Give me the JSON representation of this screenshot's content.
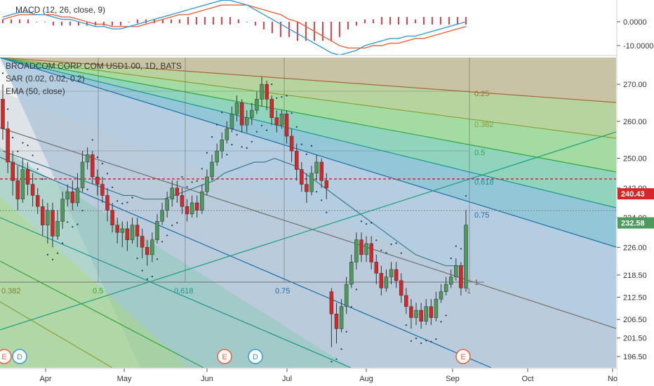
{
  "macd_pane": {
    "legend": "MACD (12, 26, close, 9)",
    "ticks": [
      "0.0000",
      "-10.0000"
    ],
    "macd_line_color": "#3a9bd5",
    "signal_line_color": "#e8643c",
    "histogram_color": "#e8101e",
    "macd_line": [
      2,
      3,
      4,
      4,
      3,
      3,
      2,
      1,
      1,
      0,
      -1,
      -2,
      -2,
      -3,
      -3,
      -2,
      -1,
      0,
      1,
      2,
      3,
      4,
      5,
      6,
      7,
      8,
      9,
      9,
      8,
      7,
      5,
      3,
      1,
      -1,
      -3,
      -5,
      -7,
      -9,
      -11,
      -13,
      -14,
      -13,
      -12,
      -10,
      -9,
      -8,
      -7,
      -7,
      -6,
      -6,
      -5,
      -4,
      -3,
      -2,
      -1,
      0
    ],
    "signal_line": [
      1,
      2,
      3,
      3,
      3,
      3,
      3,
      2,
      2,
      1,
      0,
      -1,
      -1,
      -2,
      -2,
      -2,
      -2,
      -1,
      0,
      1,
      2,
      3,
      3,
      4,
      5,
      6,
      7,
      7,
      7,
      7,
      6,
      5,
      4,
      3,
      1,
      0,
      -2,
      -4,
      -6,
      -8,
      -10,
      -11,
      -11,
      -11,
      -10,
      -10,
      -9,
      -9,
      -8,
      -7,
      -7,
      -6,
      -5,
      -4,
      -3,
      -2
    ]
  },
  "main_pane": {
    "legend": [
      "BROADCOM CORP COM USD1.00, 1D, BATS",
      "SAR (0.02, 0.02, 0.2)",
      "EMA (50, close)"
    ],
    "price_ticks": [
      "270.00",
      "260.00",
      "250.00",
      "242.00",
      "234.00",
      "226.00",
      "218.50",
      "212.50",
      "206.50",
      "201.50",
      "196.50"
    ],
    "price_tags": [
      {
        "label": "240.43",
        "value": 240.43,
        "color": "#d62728"
      },
      {
        "label": "232.58",
        "value": 232.58,
        "color": "#4c9a5c"
      }
    ],
    "months": [
      "Apr",
      "May",
      "Jun",
      "Jul",
      "Aug",
      "Sep",
      "Oct",
      "No"
    ],
    "fib_fan_labels": [
      "0.25",
      "0.382",
      "0.5",
      "0.618",
      "0.75",
      "1"
    ],
    "fib_time_labels": [
      "0.382",
      "0.5",
      "0.618",
      "0.75",
      "1"
    ],
    "event_markers": [
      {
        "label": "E",
        "type": "earnings",
        "color": "#e8643c"
      },
      {
        "label": "D",
        "type": "dividend",
        "color": "#3a9bd5"
      },
      {
        "label": "E",
        "type": "earnings",
        "color": "#e8643c"
      },
      {
        "label": "D",
        "type": "dividend",
        "color": "#3a9bd5"
      },
      {
        "label": "E",
        "type": "earnings",
        "color": "#e8643c"
      }
    ]
  },
  "chart_data": {
    "type": "candlestick",
    "title": "BROADCOM CORP COM USD1.00, 1D, BATS",
    "x_range": [
      "Mar",
      "Nov"
    ],
    "y_range": [
      195,
      276
    ],
    "up_color": "#4c9a5c",
    "down_color": "#d62728",
    "candles": [
      {
        "o": 266,
        "c": 258,
        "h": 270,
        "l": 255
      },
      {
        "o": 258,
        "c": 249,
        "h": 260,
        "l": 246
      },
      {
        "o": 249,
        "c": 244,
        "h": 252,
        "l": 240
      },
      {
        "o": 244,
        "c": 239,
        "h": 248,
        "l": 236
      },
      {
        "o": 239,
        "c": 247,
        "h": 250,
        "l": 238
      },
      {
        "o": 247,
        "c": 243,
        "h": 249,
        "l": 240
      },
      {
        "o": 243,
        "c": 240,
        "h": 246,
        "l": 237
      },
      {
        "o": 240,
        "c": 237,
        "h": 242,
        "l": 235
      },
      {
        "o": 237,
        "c": 232,
        "h": 239,
        "l": 229
      },
      {
        "o": 232,
        "c": 236,
        "h": 238,
        "l": 227
      },
      {
        "o": 236,
        "c": 229,
        "h": 238,
        "l": 226
      },
      {
        "o": 229,
        "c": 233,
        "h": 236,
        "l": 228
      },
      {
        "o": 233,
        "c": 239,
        "h": 241,
        "l": 231
      },
      {
        "o": 239,
        "c": 241,
        "h": 243,
        "l": 237
      },
      {
        "o": 241,
        "c": 238,
        "h": 244,
        "l": 236
      },
      {
        "o": 238,
        "c": 242,
        "h": 246,
        "l": 237
      },
      {
        "o": 242,
        "c": 249,
        "h": 252,
        "l": 241
      },
      {
        "o": 249,
        "c": 251,
        "h": 253,
        "l": 247
      },
      {
        "o": 251,
        "c": 245,
        "h": 252,
        "l": 243
      },
      {
        "o": 245,
        "c": 243,
        "h": 247,
        "l": 240
      },
      {
        "o": 243,
        "c": 240,
        "h": 245,
        "l": 238
      },
      {
        "o": 240,
        "c": 236,
        "h": 242,
        "l": 233
      },
      {
        "o": 236,
        "c": 232,
        "h": 238,
        "l": 230
      },
      {
        "o": 232,
        "c": 230,
        "h": 234,
        "l": 227
      },
      {
        "o": 230,
        "c": 231,
        "h": 233,
        "l": 226
      },
      {
        "o": 231,
        "c": 228,
        "h": 233,
        "l": 225
      },
      {
        "o": 228,
        "c": 232,
        "h": 234,
        "l": 227
      },
      {
        "o": 232,
        "c": 229,
        "h": 234,
        "l": 226
      },
      {
        "o": 229,
        "c": 226,
        "h": 231,
        "l": 223
      },
      {
        "o": 226,
        "c": 224,
        "h": 228,
        "l": 221
      },
      {
        "o": 224,
        "c": 228,
        "h": 230,
        "l": 222
      },
      {
        "o": 228,
        "c": 233,
        "h": 235,
        "l": 227
      },
      {
        "o": 233,
        "c": 236,
        "h": 238,
        "l": 232
      },
      {
        "o": 236,
        "c": 239,
        "h": 241,
        "l": 234
      },
      {
        "o": 239,
        "c": 242,
        "h": 244,
        "l": 237
      },
      {
        "o": 242,
        "c": 240,
        "h": 244,
        "l": 238
      },
      {
        "o": 240,
        "c": 237,
        "h": 242,
        "l": 235
      },
      {
        "o": 237,
        "c": 235,
        "h": 239,
        "l": 233
      },
      {
        "o": 235,
        "c": 238,
        "h": 240,
        "l": 234
      },
      {
        "o": 238,
        "c": 236,
        "h": 240,
        "l": 234
      },
      {
        "o": 236,
        "c": 241,
        "h": 243,
        "l": 235
      },
      {
        "o": 241,
        "c": 245,
        "h": 247,
        "l": 240
      },
      {
        "o": 245,
        "c": 249,
        "h": 251,
        "l": 244
      },
      {
        "o": 249,
        "c": 252,
        "h": 254,
        "l": 248
      },
      {
        "o": 252,
        "c": 255,
        "h": 257,
        "l": 250
      },
      {
        "o": 255,
        "c": 258,
        "h": 260,
        "l": 254
      },
      {
        "o": 258,
        "c": 262,
        "h": 264,
        "l": 257
      },
      {
        "o": 262,
        "c": 265,
        "h": 267,
        "l": 260
      },
      {
        "o": 265,
        "c": 259,
        "h": 266,
        "l": 257
      },
      {
        "o": 259,
        "c": 261,
        "h": 263,
        "l": 257
      },
      {
        "o": 261,
        "c": 263,
        "h": 265,
        "l": 259
      },
      {
        "o": 263,
        "c": 266,
        "h": 268,
        "l": 262
      },
      {
        "o": 266,
        "c": 270,
        "h": 272,
        "l": 264
      },
      {
        "o": 270,
        "c": 266,
        "h": 271,
        "l": 263
      },
      {
        "o": 266,
        "c": 261,
        "h": 267,
        "l": 259
      },
      {
        "o": 261,
        "c": 259,
        "h": 263,
        "l": 257
      },
      {
        "o": 259,
        "c": 262,
        "h": 263,
        "l": 258
      },
      {
        "o": 262,
        "c": 256,
        "h": 263,
        "l": 254
      },
      {
        "o": 256,
        "c": 252,
        "h": 258,
        "l": 249
      },
      {
        "o": 252,
        "c": 247,
        "h": 254,
        "l": 244
      },
      {
        "o": 247,
        "c": 243,
        "h": 249,
        "l": 241
      },
      {
        "o": 243,
        "c": 241,
        "h": 246,
        "l": 238
      },
      {
        "o": 241,
        "c": 246,
        "h": 248,
        "l": 240
      },
      {
        "o": 246,
        "c": 249,
        "h": 251,
        "l": 244
      },
      {
        "o": 249,
        "c": 244,
        "h": 250,
        "l": 242
      },
      {
        "o": 244,
        "c": 242,
        "h": 246,
        "l": 239
      },
      {
        "o": 214,
        "c": 208,
        "h": 215,
        "l": 199
      },
      {
        "o": 208,
        "c": 204,
        "h": 211,
        "l": 200
      },
      {
        "o": 204,
        "c": 210,
        "h": 212,
        "l": 203
      },
      {
        "o": 210,
        "c": 216,
        "h": 218,
        "l": 208
      },
      {
        "o": 216,
        "c": 222,
        "h": 224,
        "l": 215
      },
      {
        "o": 222,
        "c": 228,
        "h": 230,
        "l": 220
      },
      {
        "o": 228,
        "c": 224,
        "h": 230,
        "l": 222
      },
      {
        "o": 224,
        "c": 227,
        "h": 229,
        "l": 222
      },
      {
        "o": 227,
        "c": 222,
        "h": 229,
        "l": 220
      },
      {
        "o": 222,
        "c": 219,
        "h": 224,
        "l": 216
      },
      {
        "o": 219,
        "c": 215,
        "h": 221,
        "l": 213
      },
      {
        "o": 215,
        "c": 218,
        "h": 220,
        "l": 214
      },
      {
        "o": 218,
        "c": 220,
        "h": 222,
        "l": 216
      },
      {
        "o": 220,
        "c": 217,
        "h": 222,
        "l": 215
      },
      {
        "o": 217,
        "c": 213,
        "h": 219,
        "l": 211
      },
      {
        "o": 213,
        "c": 210,
        "h": 215,
        "l": 208
      },
      {
        "o": 210,
        "c": 207,
        "h": 212,
        "l": 204
      },
      {
        "o": 207,
        "c": 209,
        "h": 211,
        "l": 205
      },
      {
        "o": 209,
        "c": 206,
        "h": 211,
        "l": 204
      },
      {
        "o": 206,
        "c": 210,
        "h": 212,
        "l": 205
      },
      {
        "o": 210,
        "c": 207,
        "h": 212,
        "l": 205
      },
      {
        "o": 207,
        "c": 212,
        "h": 214,
        "l": 206
      },
      {
        "o": 212,
        "c": 214,
        "h": 216,
        "l": 211
      },
      {
        "o": 214,
        "c": 216,
        "h": 218,
        "l": 213
      },
      {
        "o": 216,
        "c": 218,
        "h": 220,
        "l": 215
      },
      {
        "o": 218,
        "c": 221,
        "h": 223,
        "l": 217
      },
      {
        "o": 221,
        "c": 215,
        "h": 222,
        "l": 213
      },
      {
        "o": 215,
        "c": 232,
        "h": 236,
        "l": 214
      }
    ],
    "ema_50": [
      252,
      251,
      250,
      249,
      248,
      247,
      246,
      245,
      244,
      243,
      242,
      241,
      240,
      240,
      239,
      239,
      239,
      240,
      241,
      242,
      243,
      244,
      246,
      247,
      248,
      249,
      249,
      250,
      249,
      248,
      246,
      244,
      242,
      240,
      238,
      236,
      234,
      232,
      230,
      228,
      226,
      224,
      223,
      222,
      221,
      221,
      221
    ],
    "parabolic_sar": "dots above/below price",
    "fib_speed_resistance_fan": [
      "0.25",
      "0.382",
      "0.5",
      "0.618",
      "0.75",
      "1"
    ],
    "fib_time_zones": [
      "0.382",
      "0.5",
      "0.618",
      "0.75",
      "1"
    ],
    "current_price": 232.58,
    "marked_level": 240.43
  }
}
